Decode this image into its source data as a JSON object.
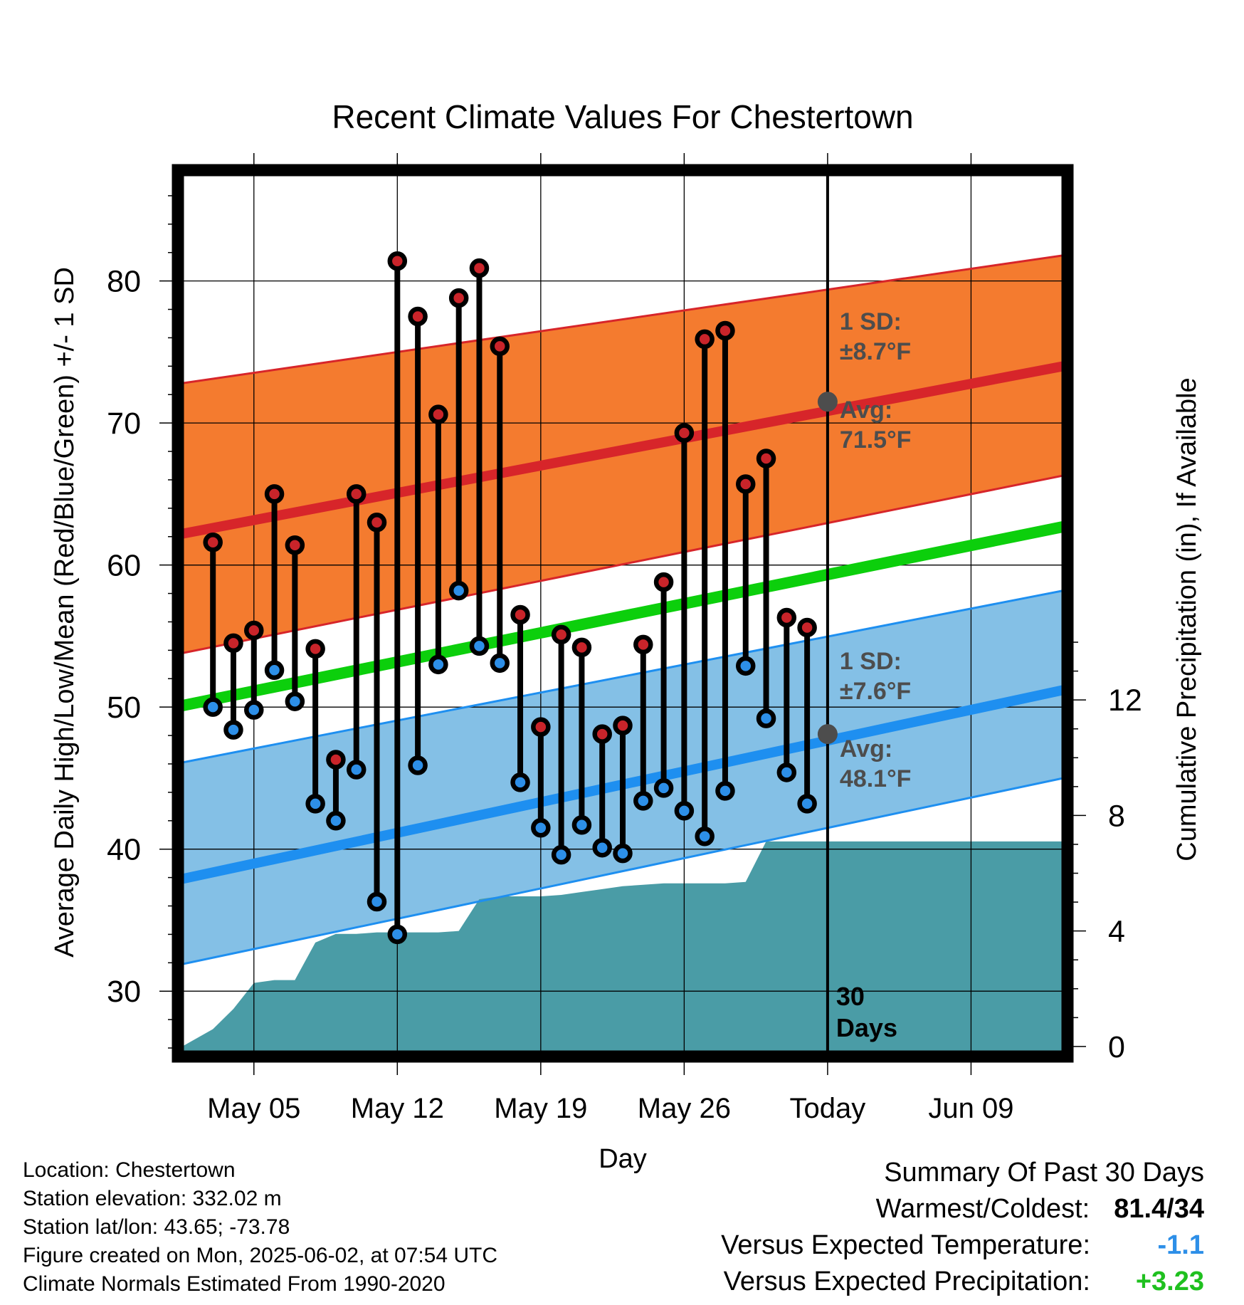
{
  "colors": {
    "high_fill": "#f47b2f",
    "high_line": "#d7252a",
    "low_fill": "#84c0e6",
    "low_line": "#1e8ff0",
    "mean_line": "#0ccf0c",
    "precip_fill": "#4a9ca6",
    "high_dot": "#c9242a",
    "low_dot": "#2d8fe8",
    "annot_text": "#4d4d4d",
    "temp_anomaly": "#2d8fe8",
    "precip_anomaly": "#1fc01f"
  },
  "chart_data": {
    "type": "line",
    "title": "Recent Climate Values For Chestertown",
    "xlabel": "Day",
    "ylabel_left": "Average Daily High/Low/Mean (Red/Blue/Green) +/- 1 SD",
    "ylabel_right": "Cumulative Precipitation (in), If Available",
    "xlim": [
      1.5,
      44.5
    ],
    "ylim": [
      25.7,
      87.5
    ],
    "y2lim": [
      -0.2,
      30.2
    ],
    "x_ticks": [
      {
        "x": 5,
        "label": "May 05"
      },
      {
        "x": 12,
        "label": "May 12"
      },
      {
        "x": 19,
        "label": "May 19"
      },
      {
        "x": 26,
        "label": "May 26"
      },
      {
        "x": 33,
        "label": "Today"
      },
      {
        "x": 40,
        "label": "Jun 09"
      }
    ],
    "y_ticks": [
      30,
      40,
      50,
      60,
      70,
      80
    ],
    "y2_ticks": [
      0,
      4,
      8,
      12
    ],
    "grid": true,
    "today_x": 33,
    "today_label": "30 Days",
    "normals": {
      "x": [
        1.5,
        44.5
      ],
      "high_avg": [
        62.2,
        74.0
      ],
      "high_upper": [
        72.8,
        81.8
      ],
      "high_lower": [
        53.8,
        66.3
      ],
      "low_avg": [
        37.9,
        51.2
      ],
      "low_upper": [
        46.1,
        58.2
      ],
      "low_lower": [
        31.9,
        45.0
      ],
      "mean_avg": [
        50.1,
        62.7
      ]
    },
    "annotations": [
      {
        "label": "1 SD:",
        "value": "±8.7°F",
        "kind": "high_sd"
      },
      {
        "label": "Avg:",
        "value": "71.5°F",
        "kind": "high_avg",
        "y": 71.5
      },
      {
        "label": "1 SD:",
        "value": "±7.6°F",
        "kind": "low_sd"
      },
      {
        "label": "Avg:",
        "value": "48.1°F",
        "kind": "low_avg",
        "y": 48.1
      }
    ],
    "series": [
      {
        "name": "High",
        "x": [
          3,
          4,
          5,
          6,
          7,
          8,
          9,
          10,
          11,
          12,
          13,
          14,
          15,
          16,
          17,
          18,
          19,
          20,
          21,
          22,
          23,
          24,
          25,
          26,
          27,
          28,
          29,
          30,
          31,
          32
        ],
        "values": [
          61.6,
          54.5,
          55.4,
          65.0,
          61.4,
          54.1,
          46.3,
          65.0,
          63.0,
          81.4,
          77.5,
          70.6,
          78.8,
          80.9,
          75.4,
          56.5,
          48.6,
          55.1,
          54.2,
          48.1,
          48.7,
          54.4,
          58.8,
          69.3,
          75.9,
          76.5,
          65.7,
          67.5,
          56.3,
          55.6
        ]
      },
      {
        "name": "Low",
        "x": [
          3,
          4,
          5,
          6,
          7,
          8,
          9,
          10,
          11,
          12,
          13,
          14,
          15,
          16,
          17,
          18,
          19,
          20,
          21,
          22,
          23,
          24,
          25,
          26,
          27,
          28,
          29,
          30,
          31,
          32
        ],
        "values": [
          50.0,
          48.4,
          49.8,
          52.6,
          50.4,
          43.2,
          42.0,
          45.6,
          36.3,
          34.0,
          45.9,
          53.0,
          58.2,
          54.3,
          53.1,
          44.7,
          41.5,
          39.6,
          41.7,
          40.1,
          39.7,
          43.4,
          44.3,
          42.7,
          40.9,
          44.1,
          52.9,
          49.2,
          45.4,
          43.2
        ]
      },
      {
        "name": "Cumulative Precipitation",
        "x": [
          1.5,
          3,
          4,
          5,
          6,
          7,
          8,
          9,
          10,
          11,
          12,
          13,
          14,
          15,
          16,
          17,
          18,
          19,
          20,
          21,
          22,
          23,
          24,
          25,
          26,
          27,
          28,
          29,
          30,
          31,
          32,
          33,
          44.5
        ],
        "values": [
          0,
          0.6,
          1.3,
          2.2,
          2.3,
          2.3,
          3.6,
          3.9,
          3.9,
          3.95,
          3.95,
          3.95,
          3.95,
          4.0,
          5.1,
          5.2,
          5.2,
          5.2,
          5.25,
          5.35,
          5.45,
          5.55,
          5.6,
          5.65,
          5.65,
          5.65,
          5.65,
          5.7,
          7.1,
          7.1,
          7.1,
          7.1,
          7.1
        ]
      }
    ]
  },
  "footer": {
    "location": "Location: Chestertown",
    "elevation": "Station elevation: 332.02 m",
    "latlon": "Station lat/lon: 43.65; -73.78",
    "created": "Figure created on Mon, 2025-06-02, at 07:54 UTC",
    "normals": "Climate Normals Estimated From 1990-2020"
  },
  "summary": {
    "title": "Summary Of Past 30 Days",
    "warmest_label": "Warmest/Coldest:",
    "warmest_value": "81.4/34",
    "temp_label": "Versus Expected Temperature:",
    "temp_value": "-1.1",
    "precip_label": "Versus Expected Precipitation:",
    "precip_value": "+3.23"
  }
}
